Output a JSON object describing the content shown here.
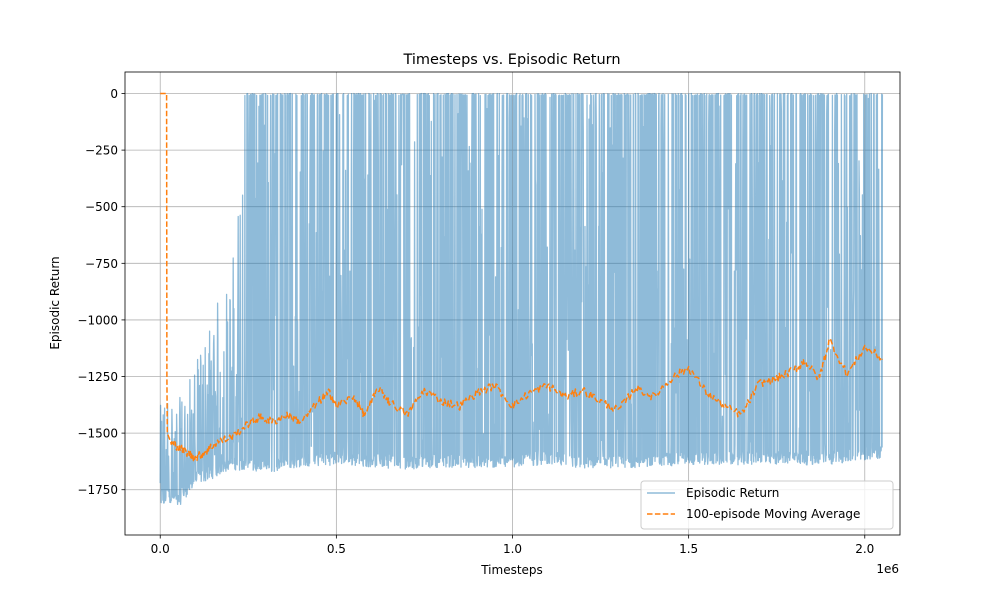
{
  "chart_data": {
    "type": "line",
    "title": "Timesteps vs. Episodic Return",
    "xlabel": "Timesteps",
    "ylabel": "Episodic Return",
    "x_offset_label": "1e6",
    "xlim": [
      -0.1,
      2.1
    ],
    "ylim": [
      -1950,
      95
    ],
    "grid": true,
    "legend_position": "lower-right",
    "xticks": [
      0.0,
      0.5,
      1.0,
      1.5,
      2.0
    ],
    "xtick_labels": [
      "0.0",
      "0.5",
      "1.0",
      "1.5",
      "2.0"
    ],
    "yticks": [
      0,
      -250,
      -500,
      -750,
      -1000,
      -1250,
      -1500,
      -1750
    ],
    "ytick_labels": [
      "0",
      "−250",
      "−500",
      "−750",
      "−1000",
      "−1250",
      "−1500",
      "−1750"
    ],
    "series": [
      {
        "name": "Episodic Return",
        "color": "#1f77b4",
        "opacity": 0.5,
        "style": "solid",
        "x_start": 0.0,
        "x_end": 2.05,
        "lower_envelope": {
          "x": [
            0.0,
            0.02,
            0.05,
            0.1,
            0.15,
            0.2,
            0.25,
            0.3,
            0.35,
            0.4,
            0.5,
            0.6,
            0.7,
            0.8,
            0.9,
            1.0,
            1.1,
            1.2,
            1.3,
            1.4,
            1.5,
            1.6,
            1.7,
            1.8,
            1.9,
            2.0,
            2.05
          ],
          "y": [
            -1870,
            -1800,
            -1830,
            -1730,
            -1700,
            -1660,
            -1670,
            -1680,
            -1660,
            -1650,
            -1640,
            -1650,
            -1660,
            -1650,
            -1660,
            -1650,
            -1640,
            -1660,
            -1660,
            -1650,
            -1640,
            -1640,
            -1640,
            -1640,
            -1640,
            -1620,
            -1610
          ]
        },
        "upper_envelope": {
          "x": [
            0.0,
            0.02,
            0.05,
            0.1,
            0.15,
            0.2,
            0.22,
            0.23,
            0.24,
            0.3,
            0.5,
            1.0,
            1.5,
            2.0,
            2.05
          ],
          "y": [
            -1380,
            -1290,
            -1360,
            -1200,
            -950,
            -800,
            -500,
            -200,
            0,
            0,
            0,
            0,
            0,
            0,
            0
          ]
        }
      },
      {
        "name": "100-episode Moving Average",
        "color": "#ff7f0e",
        "style": "dashed",
        "x": [
          0.0,
          0.018,
          0.019,
          0.02,
          0.03,
          0.05,
          0.08,
          0.1,
          0.13,
          0.16,
          0.2,
          0.25,
          0.28,
          0.32,
          0.36,
          0.4,
          0.45,
          0.48,
          0.5,
          0.55,
          0.58,
          0.62,
          0.65,
          0.7,
          0.75,
          0.8,
          0.85,
          0.9,
          0.95,
          1.0,
          1.05,
          1.1,
          1.15,
          1.2,
          1.25,
          1.3,
          1.35,
          1.4,
          1.45,
          1.5,
          1.55,
          1.6,
          1.65,
          1.7,
          1.75,
          1.8,
          1.83,
          1.87,
          1.9,
          1.95,
          2.0,
          2.05
        ],
        "y": [
          0,
          0,
          -1250,
          -1500,
          -1540,
          -1560,
          -1590,
          -1610,
          -1580,
          -1540,
          -1520,
          -1460,
          -1430,
          -1450,
          -1420,
          -1450,
          -1360,
          -1320,
          -1380,
          -1340,
          -1420,
          -1300,
          -1360,
          -1420,
          -1310,
          -1360,
          -1380,
          -1320,
          -1290,
          -1380,
          -1320,
          -1290,
          -1340,
          -1310,
          -1360,
          -1400,
          -1300,
          -1340,
          -1260,
          -1210,
          -1320,
          -1380,
          -1420,
          -1280,
          -1260,
          -1220,
          -1180,
          -1260,
          -1090,
          -1240,
          -1120,
          -1170
        ]
      }
    ]
  }
}
